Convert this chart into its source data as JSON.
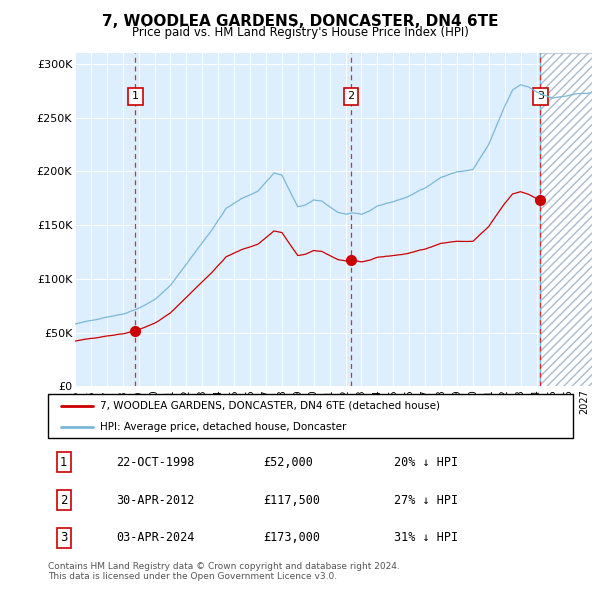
{
  "title": "7, WOODLEA GARDENS, DONCASTER, DN4 6TE",
  "subtitle": "Price paid vs. HM Land Registry's House Price Index (HPI)",
  "ylabel_ticks": [
    "£0",
    "£50K",
    "£100K",
    "£150K",
    "£200K",
    "£250K",
    "£300K"
  ],
  "ytick_values": [
    0,
    50000,
    100000,
    150000,
    200000,
    250000,
    300000
  ],
  "ylim": [
    0,
    310000
  ],
  "xlim_start": 1995.0,
  "xlim_end": 2027.5,
  "sale_decimal_dates": [
    1998.8,
    2012.333,
    2024.25
  ],
  "sale_prices": [
    52000,
    117500,
    173000
  ],
  "sale_labels": [
    "1",
    "2",
    "3"
  ],
  "legend_line1": "7, WOODLEA GARDENS, DONCASTER, DN4 6TE (detached house)",
  "legend_line2": "HPI: Average price, detached house, Doncaster",
  "table_rows": [
    [
      "1",
      "22-OCT-1998",
      "£52,000",
      "20% ↓ HPI"
    ],
    [
      "2",
      "30-APR-2012",
      "£117,500",
      "27% ↓ HPI"
    ],
    [
      "3",
      "03-APR-2024",
      "£173,000",
      "31% ↓ HPI"
    ]
  ],
  "footer": "Contains HM Land Registry data © Crown copyright and database right 2024.\nThis data is licensed under the Open Government Licence v3.0.",
  "hpi_color": "#7ab8d9",
  "sale_color": "#cc0000",
  "bg_color": "#ddeeff",
  "future_bg": "#f0f4f8",
  "hatch_color": "#aabbcc"
}
